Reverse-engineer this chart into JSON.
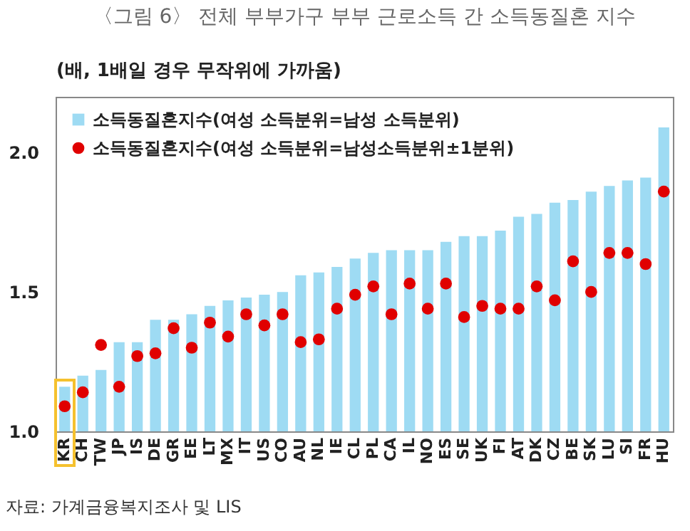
{
  "chart_data": {
    "type": "bar",
    "title": "〈그림 6〉 전체 부부가구 부부 근로소득 간 소득동질혼 지수",
    "ylabel": "(배, 1배일 경우 무작위에 가까움)",
    "categories": [
      "KR",
      "CH",
      "TW",
      "JP",
      "IS",
      "DE",
      "GR",
      "EE",
      "LT",
      "MX",
      "IT",
      "US",
      "CO",
      "AU",
      "NL",
      "IE",
      "CL",
      "PL",
      "CA",
      "IL",
      "NO",
      "ES",
      "SE",
      "UK",
      "FI",
      "AT",
      "DK",
      "CZ",
      "BE",
      "SK",
      "LU",
      "SI",
      "FR",
      "HU"
    ],
    "series": [
      {
        "name": "소득동질혼지수(여성 소득분위=남성 소득분위)",
        "color": "#9edbf3",
        "values": [
          1.16,
          1.2,
          1.22,
          1.32,
          1.32,
          1.4,
          1.4,
          1.42,
          1.45,
          1.47,
          1.48,
          1.49,
          1.5,
          1.56,
          1.57,
          1.59,
          1.62,
          1.64,
          1.65,
          1.65,
          1.65,
          1.68,
          1.7,
          1.7,
          1.72,
          1.77,
          1.78,
          1.82,
          1.83,
          1.86,
          1.88,
          1.9,
          1.91,
          2.09
        ]
      },
      {
        "name": "소득동질혼지수(여성 소득분위=남성소득분위±1분위)",
        "type": "scatter",
        "marker": "circle",
        "color": "#e00000",
        "values": [
          1.09,
          1.14,
          1.31,
          1.16,
          1.27,
          1.28,
          1.37,
          1.3,
          1.39,
          1.34,
          1.42,
          1.38,
          1.42,
          1.32,
          1.33,
          1.44,
          1.49,
          1.52,
          1.42,
          1.53,
          1.44,
          1.53,
          1.41,
          1.45,
          1.44,
          1.44,
          1.52,
          1.47,
          1.61,
          1.5,
          1.64,
          1.64,
          1.6,
          1.86
        ]
      }
    ],
    "ylim": [
      1.0,
      2.2
    ],
    "yticks": [
      {
        "value": 1.0,
        "label": "1.0"
      },
      {
        "value": 1.5,
        "label": "1.5"
      },
      {
        "value": 2.0,
        "label": "2.0"
      }
    ],
    "grid": false,
    "legend": "top left",
    "annotations": [
      "자료: 가계금융복지조사 및 LIS"
    ]
  }
}
